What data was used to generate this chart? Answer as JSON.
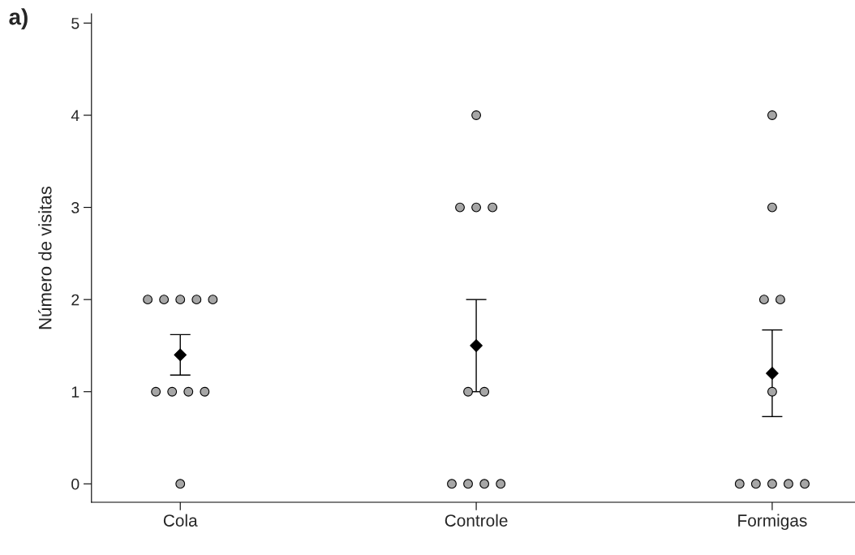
{
  "chart_data": {
    "type": "scatter",
    "ylabel": "Número de visitas",
    "annotations": [
      "a)"
    ],
    "categories": [
      "Cola",
      "Controle",
      "Formigas"
    ],
    "ylim": [
      -0.2,
      5.1
    ],
    "yticks": [
      0,
      1,
      2,
      3,
      4,
      5
    ],
    "grid": false,
    "series": [
      {
        "color": "#a6a6a6",
        "marker": "circle",
        "x": [
          "Cola",
          "Cola",
          "Cola",
          "Cola",
          "Cola",
          "Cola",
          "Cola",
          "Cola",
          "Cola",
          "Cola",
          "Controle",
          "Controle",
          "Controle",
          "Controle",
          "Controle",
          "Controle",
          "Controle",
          "Controle",
          "Controle",
          "Controle",
          "Formigas",
          "Formigas",
          "Formigas",
          "Formigas",
          "Formigas",
          "Formigas",
          "Formigas",
          "Formigas",
          "Formigas",
          "Formigas"
        ],
        "values": [
          0,
          2,
          2,
          1,
          2,
          1,
          1,
          1,
          2,
          2,
          3,
          3,
          3,
          4,
          1,
          1,
          0,
          0,
          0,
          0,
          4,
          3,
          2,
          2,
          1,
          0,
          0,
          0,
          0,
          0
        ]
      },
      {
        "color": "#000000",
        "marker": "diamond",
        "x": [
          "Cola",
          "Controle",
          "Formigas"
        ],
        "values": [
          1.4,
          1.5,
          1.2
        ],
        "errors": [
          0.22,
          0.5,
          0.47
        ]
      }
    ]
  }
}
